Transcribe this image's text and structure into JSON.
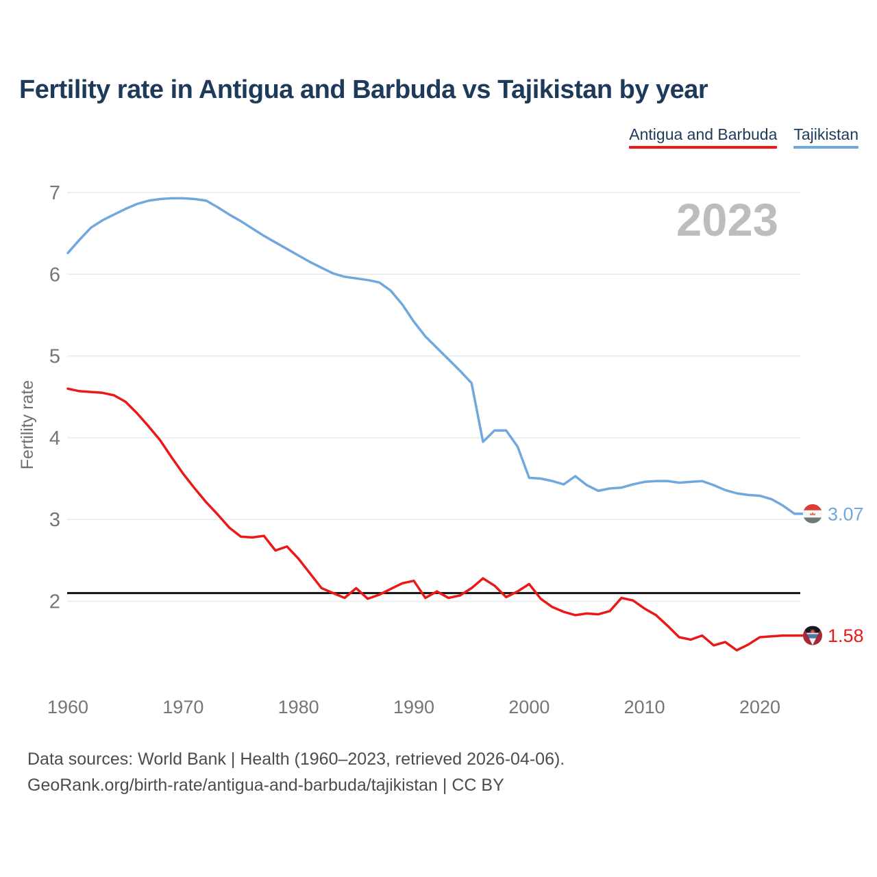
{
  "title": "Fertility rate in Antigua and Barbuda vs Tajikistan by year",
  "watermark": "2023",
  "legend": [
    {
      "label": "Antigua and Barbuda",
      "color": "#ea1917"
    },
    {
      "label": "Tajikistan",
      "color": "#6fa8dd"
    }
  ],
  "y_axis": {
    "label": "Fertility rate",
    "ticks": [
      7,
      6,
      5,
      4,
      3,
      2
    ]
  },
  "x_axis": {
    "ticks": [
      1960,
      1970,
      1980,
      1990,
      2000,
      2010,
      2020
    ]
  },
  "reference_line": {
    "value": 2.1,
    "color": "#111111"
  },
  "end_labels": [
    {
      "series": "Tajikistan",
      "value": "3.07",
      "color": "#6fa8dd",
      "flag": "tajikistan-flag"
    },
    {
      "series": "Antigua and Barbuda",
      "value": "1.58",
      "color": "#ea1917",
      "flag": "antigua-and-barbuda-flag"
    }
  ],
  "footer": {
    "line1": "Data sources: World Bank | Health (1960–2023, retrieved 2026-04-06).",
    "line2": "GeoRank.org/birth-rate/antigua-and-barbuda/tajikistan | CC BY"
  },
  "chart_data": {
    "type": "line",
    "title": "Fertility rate in Antigua and Barbuda vs Tajikistan by year",
    "xlabel": "",
    "ylabel": "Fertility rate",
    "xlim": [
      1960,
      2023
    ],
    "ylim": [
      1.3,
      7.2
    ],
    "grid": "horizontal",
    "legend_position": "top-right",
    "annotations": {
      "replacement_level_line": 2.1,
      "watermark_year": "2023"
    },
    "years": [
      1960,
      1961,
      1962,
      1963,
      1964,
      1965,
      1966,
      1967,
      1968,
      1969,
      1970,
      1971,
      1972,
      1973,
      1974,
      1975,
      1976,
      1977,
      1978,
      1979,
      1980,
      1981,
      1982,
      1983,
      1984,
      1985,
      1986,
      1987,
      1988,
      1989,
      1990,
      1991,
      1992,
      1993,
      1994,
      1995,
      1996,
      1997,
      1998,
      1999,
      2000,
      2001,
      2002,
      2003,
      2004,
      2005,
      2006,
      2007,
      2008,
      2009,
      2010,
      2011,
      2012,
      2013,
      2014,
      2015,
      2016,
      2017,
      2018,
      2019,
      2020,
      2021,
      2022,
      2023
    ],
    "series": [
      {
        "name": "Antigua and Barbuda",
        "color": "#ea1917",
        "end_value": 1.58,
        "values": [
          4.6,
          4.57,
          4.56,
          4.55,
          4.52,
          4.44,
          4.3,
          4.14,
          3.97,
          3.76,
          3.56,
          3.38,
          3.21,
          3.06,
          2.9,
          2.79,
          2.78,
          2.8,
          2.62,
          2.67,
          2.52,
          2.34,
          2.16,
          2.1,
          2.04,
          2.16,
          2.03,
          2.08,
          2.15,
          2.22,
          2.25,
          2.04,
          2.12,
          2.04,
          2.07,
          2.16,
          2.28,
          2.19,
          2.05,
          2.12,
          2.21,
          2.03,
          1.93,
          1.87,
          1.83,
          1.85,
          1.84,
          1.88,
          2.04,
          2.01,
          1.91,
          1.83,
          1.7,
          1.56,
          1.53,
          1.58,
          1.46,
          1.5,
          1.4,
          1.47,
          1.56,
          1.57,
          1.58,
          1.58
        ]
      },
      {
        "name": "Tajikistan",
        "color": "#6fa8dd",
        "end_value": 3.07,
        "values": [
          6.26,
          6.42,
          6.57,
          6.66,
          6.73,
          6.8,
          6.86,
          6.9,
          6.92,
          6.93,
          6.93,
          6.92,
          6.9,
          6.82,
          6.73,
          6.65,
          6.56,
          6.47,
          6.39,
          6.31,
          6.23,
          6.15,
          6.08,
          6.01,
          5.97,
          5.95,
          5.93,
          5.9,
          5.8,
          5.63,
          5.42,
          5.24,
          5.1,
          4.96,
          4.82,
          4.67,
          3.95,
          4.09,
          4.09,
          3.89,
          3.51,
          3.5,
          3.47,
          3.43,
          3.53,
          3.42,
          3.35,
          3.38,
          3.39,
          3.43,
          3.46,
          3.47,
          3.47,
          3.45,
          3.46,
          3.47,
          3.42,
          3.36,
          3.32,
          3.3,
          3.29,
          3.25,
          3.17,
          3.07
        ]
      }
    ]
  }
}
